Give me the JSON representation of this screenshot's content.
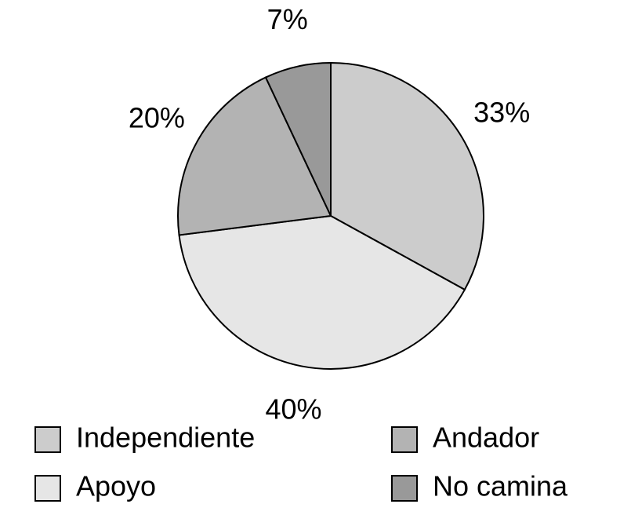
{
  "chart_data": {
    "type": "pie",
    "categories": [
      "Independiente",
      "Apoyo",
      "Andador",
      "No camina"
    ],
    "values": [
      33,
      40,
      20,
      7
    ],
    "value_labels": [
      "33%",
      "40%",
      "20%",
      "7%"
    ],
    "colors": [
      "#cccccc",
      "#e6e6e6",
      "#b3b3b3",
      "#999999"
    ],
    "legend": "bottom"
  }
}
